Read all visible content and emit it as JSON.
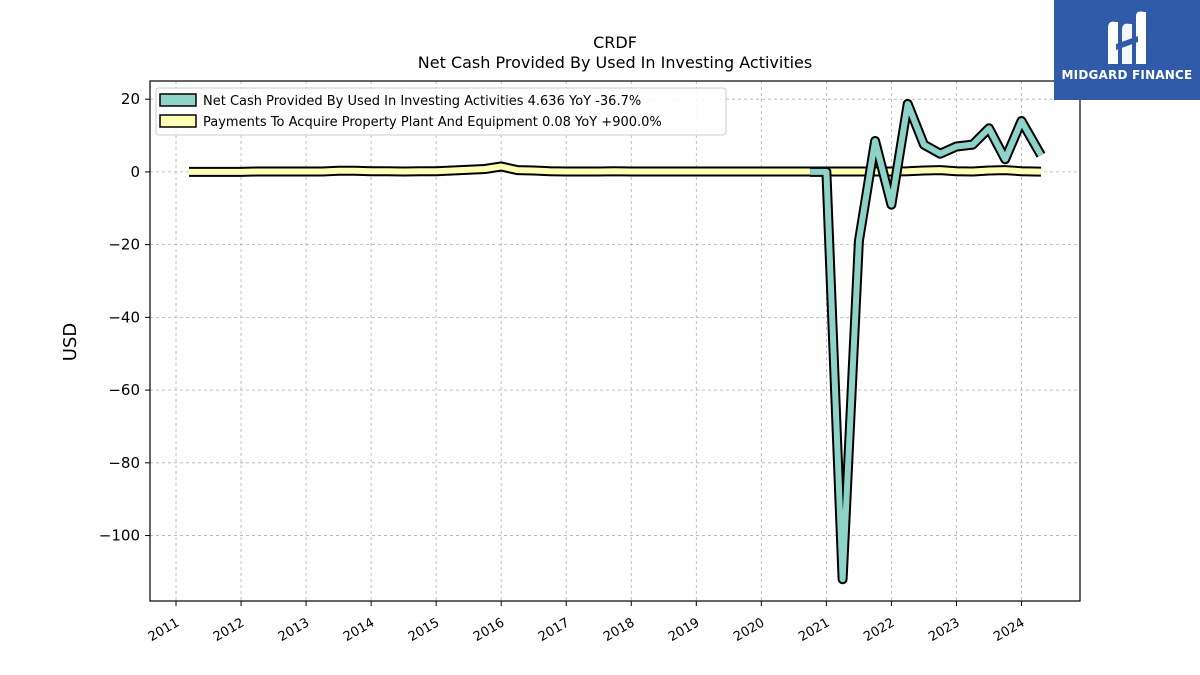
{
  "chart_data": {
    "type": "line",
    "title": "CRDF",
    "subtitle": "Net Cash Provided By Used In Investing Activities",
    "ylabel": "USD",
    "xlabel": "",
    "ylim": [
      -118,
      25
    ],
    "xlim": [
      2010.6,
      2024.9
    ],
    "grid": true,
    "legend_position": "top-left",
    "yticks": [
      20,
      0,
      -20,
      -40,
      -60,
      -80,
      -100
    ],
    "ytick_labels": [
      "20",
      "0",
      "−20",
      "−40",
      "−60",
      "−80",
      "−100"
    ],
    "xticks": [
      2011,
      2012,
      2013,
      2014,
      2015,
      2016,
      2017,
      2018,
      2019,
      2020,
      2021,
      2022,
      2023,
      2024
    ],
    "xtick_labels": [
      "2011",
      "2012",
      "2013",
      "2014",
      "2015",
      "2016",
      "2017",
      "2018",
      "2019",
      "2020",
      "2021",
      "2022",
      "2023",
      "2024"
    ],
    "series": [
      {
        "name": "Net Cash Provided By Used In Investing Activities",
        "legend_label": "Net Cash Provided By Used In Investing Activities  4.636 YoY -36.7%",
        "color": "#8dd3c7",
        "x": [
          2020.75,
          2021.0,
          2021.25,
          2021.5,
          2021.75,
          2022.0,
          2022.25,
          2022.5,
          2022.75,
          2023.0,
          2023.25,
          2023.5,
          2023.75,
          2024.0,
          2024.3
        ],
        "values": [
          0,
          0,
          -112,
          -19,
          8.5,
          -9,
          18.7,
          7.5,
          5,
          7,
          7.5,
          12,
          3.5,
          14,
          4.6
        ]
      },
      {
        "name": "Payments To Acquire Property Plant And Equipment",
        "legend_label": "Payments To Acquire Property Plant And Equipment  0.08 YoY +900.0%",
        "color": "#ffffb3",
        "x": [
          2011.2,
          2011.5,
          2011.75,
          2012.0,
          2012.25,
          2012.5,
          2012.75,
          2013.0,
          2013.25,
          2013.5,
          2013.75,
          2014.0,
          2014.25,
          2014.5,
          2014.75,
          2015.0,
          2015.25,
          2015.5,
          2015.75,
          2016.0,
          2016.25,
          2016.5,
          2016.75,
          2017.0,
          2017.25,
          2017.5,
          2017.75,
          2018.0,
          2018.25,
          2018.5,
          2018.75,
          2019.0,
          2019.25,
          2019.5,
          2019.75,
          2020.0,
          2020.25,
          2020.5,
          2020.75,
          2021.0,
          2021.25,
          2021.5,
          2021.75,
          2022.0,
          2022.25,
          2022.5,
          2022.75,
          2023.0,
          2023.25,
          2023.5,
          2023.75,
          2024.0,
          2024.3
        ],
        "values": [
          0,
          0,
          0,
          0,
          0.1,
          0.1,
          0.1,
          0.1,
          0.1,
          0.3,
          0.3,
          0.2,
          0.2,
          0.1,
          0.2,
          0.2,
          0.4,
          0.6,
          0.8,
          1.5,
          0.5,
          0.4,
          0.2,
          0.1,
          0.1,
          0.1,
          0.2,
          0.1,
          0.1,
          0.1,
          0.1,
          0.1,
          0.1,
          0.1,
          0.1,
          0.1,
          0.1,
          0.1,
          0.1,
          0.1,
          0.1,
          0.1,
          0.1,
          0.1,
          0.2,
          0.4,
          0.5,
          0.2,
          0.1,
          0.4,
          0.5,
          0.2,
          0.08
        ]
      }
    ]
  },
  "logo": {
    "text": "MIDGARD FINANCE",
    "icon": "midgard-logo-icon",
    "background": "#2f5ba8"
  }
}
